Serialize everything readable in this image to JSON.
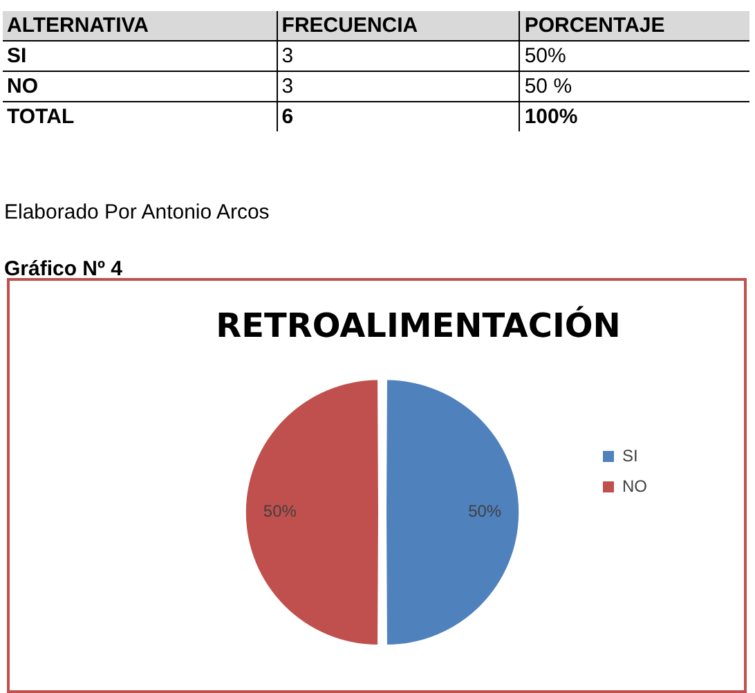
{
  "chart_data": {
    "type": "pie",
    "title": "RETROALIMENTACIÓN",
    "categories": [
      "SI",
      "NO"
    ],
    "values": [
      50,
      50
    ],
    "colors": [
      "#4f81bd",
      "#c0504d"
    ],
    "value_labels": [
      "50%",
      "50%"
    ],
    "legend": "right",
    "annotations": [
      "ALTERNATIVA",
      "FRECUENCIA",
      "PORCENTAJE",
      "SI",
      "3",
      "50%",
      "NO",
      "3",
      "50 %",
      "TOTAL",
      "6",
      "100%",
      "Elaborado Por Antonio Arcos",
      "Gráfico Nº 4"
    ]
  }
}
